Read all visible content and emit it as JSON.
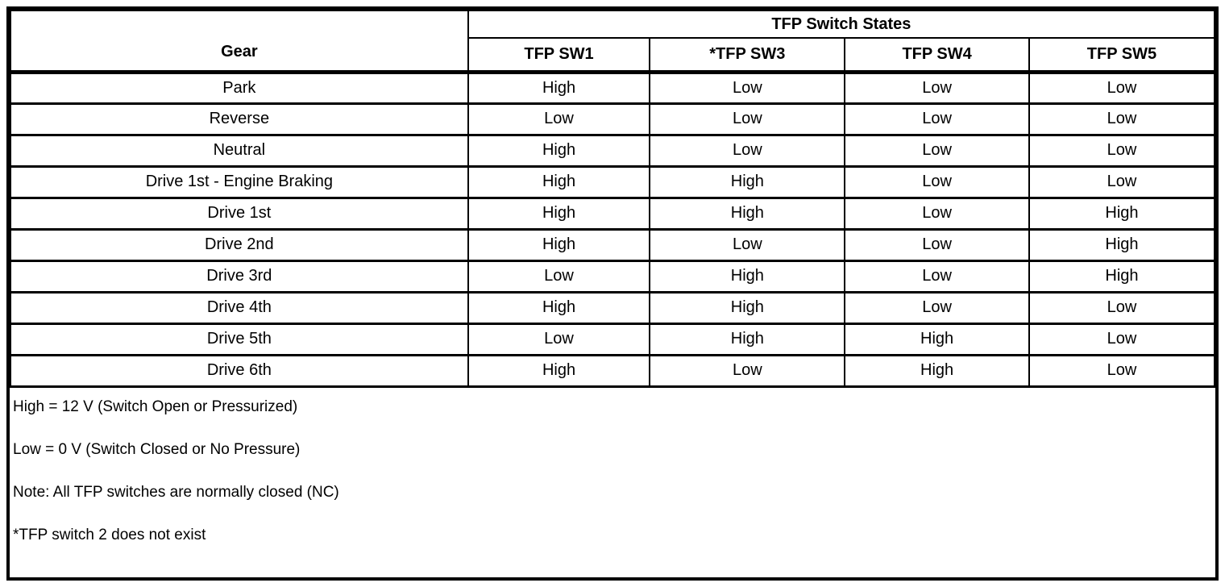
{
  "table": {
    "group_header": "TFP Switch States",
    "columns": {
      "gear": "Gear",
      "sw1": "TFP SW1",
      "sw3": "*TFP SW3",
      "sw4": "TFP SW4",
      "sw5": "TFP SW5"
    },
    "rows": [
      {
        "gear": "Park",
        "sw1": "High",
        "sw3": "Low",
        "sw4": "Low",
        "sw5": "Low"
      },
      {
        "gear": "Reverse",
        "sw1": "Low",
        "sw3": "Low",
        "sw4": "Low",
        "sw5": "Low"
      },
      {
        "gear": "Neutral",
        "sw1": "High",
        "sw3": "Low",
        "sw4": "Low",
        "sw5": "Low"
      },
      {
        "gear": "Drive 1st - Engine Braking",
        "sw1": "High",
        "sw3": "High",
        "sw4": "Low",
        "sw5": "Low"
      },
      {
        "gear": "Drive 1st",
        "sw1": "High",
        "sw3": "High",
        "sw4": "Low",
        "sw5": "High"
      },
      {
        "gear": "Drive 2nd",
        "sw1": "High",
        "sw3": "Low",
        "sw4": "Low",
        "sw5": "High"
      },
      {
        "gear": "Drive 3rd",
        "sw1": "Low",
        "sw3": "High",
        "sw4": "Low",
        "sw5": "High"
      },
      {
        "gear": "Drive 4th",
        "sw1": "High",
        "sw3": "High",
        "sw4": "Low",
        "sw5": "Low"
      },
      {
        "gear": "Drive 5th",
        "sw1": "Low",
        "sw3": "High",
        "sw4": "High",
        "sw5": "Low"
      },
      {
        "gear": "Drive 6th",
        "sw1": "High",
        "sw3": "Low",
        "sw4": "High",
        "sw5": "Low"
      }
    ],
    "notes": [
      "High = 12 V (Switch Open or Pressurized)",
      "Low = 0 V (Switch Closed or No Pressure)",
      "Note: All TFP switches are normally closed (NC)",
      "*TFP switch 2 does not exist"
    ]
  },
  "colors": {
    "border": "#000000",
    "background": "#ffffff",
    "text": "#000000"
  }
}
